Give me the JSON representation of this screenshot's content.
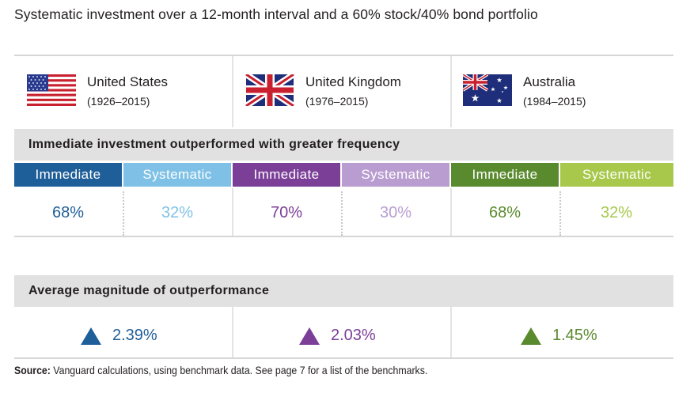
{
  "title": "Systematic investment over a 12-month interval and a 60% stock/40% bond portfolio",
  "countries": [
    {
      "name": "United States",
      "years": "(1926–2015)",
      "flag": "us-flag-icon",
      "color_immediate": "#1f5f99",
      "color_systematic": "#7fc1e6"
    },
    {
      "name": "United Kingdom",
      "years": "(1976–2015)",
      "flag": "uk-flag-icon",
      "color_immediate": "#7b3f98",
      "color_systematic": "#b99dd0"
    },
    {
      "name": "Australia",
      "years": "(1984–2015)",
      "flag": "australia-flag-icon",
      "color_immediate": "#5a8a2e",
      "color_systematic": "#a7c84a"
    }
  ],
  "frequency_band": {
    "label": "Immediate investment outperformed with greater frequency"
  },
  "magnitude_band": {
    "label": "Average magnitude of outperformance"
  },
  "chart_data": {
    "type": "table",
    "columns": [
      "Immediate",
      "Systematic"
    ],
    "groups": [
      "United States",
      "United Kingdom",
      "Australia"
    ],
    "frequency": [
      {
        "group": "United States",
        "immediate": "68%",
        "systematic": "32%"
      },
      {
        "group": "United Kingdom",
        "immediate": "70%",
        "systematic": "30%"
      },
      {
        "group": "Australia",
        "immediate": "68%",
        "systematic": "32%"
      }
    ],
    "average_magnitude": [
      {
        "group": "United States",
        "value": "2.39%",
        "icon": "up-triangle-icon"
      },
      {
        "group": "United Kingdom",
        "value": "2.03%",
        "icon": "up-triangle-icon"
      },
      {
        "group": "Australia",
        "value": "1.45%",
        "icon": "up-triangle-icon"
      }
    ]
  },
  "source": {
    "label": "Source:",
    "text": " Vanguard calculations, using benchmark data. See page 7 for a list of the benchmarks."
  }
}
